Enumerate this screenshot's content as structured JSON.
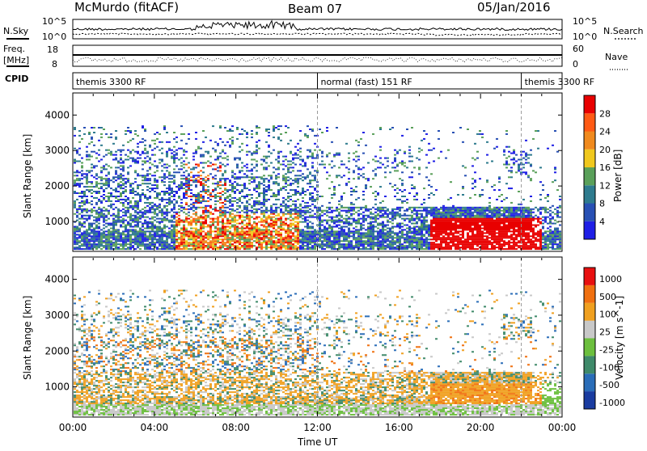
{
  "header": {
    "station": "McMurdo (fitACF)",
    "beam": "Beam 07",
    "date": "05/Jan/2016"
  },
  "left_labels": {
    "nsky": "N.Sky",
    "freq": "Freq.",
    "freq_unit": "[MHz]",
    "cpid": "CPID"
  },
  "right_labels": {
    "nsearch": "N.Search",
    "nave": "Nave"
  },
  "axes_small": {
    "noise_left_top": "10^5",
    "noise_left_bottom": "10^0",
    "noise_right_top": "10^5",
    "noise_right_bottom": "10^0",
    "freq_top": "18",
    "freq_bottom": "8",
    "nave_top": "60",
    "nave_bottom": "0"
  },
  "cpid_segments": [
    {
      "label": "themis 3300 RF",
      "start_hour": 0
    },
    {
      "label": "normal (fast) 151 RF",
      "start_hour": 12
    },
    {
      "label": "themis 3300 RF",
      "start_hour": 22
    }
  ],
  "chart_data": [
    {
      "type": "heatmap",
      "name": "power-panel",
      "ylabel": "Slant Range [km]",
      "xlabel": "",
      "y_ticks": [
        "1000",
        "2000",
        "3000",
        "4000"
      ],
      "y_tick_values": [
        1000,
        2000,
        3000,
        4000
      ],
      "ylim": [
        180,
        4600
      ],
      "x_ticks": [],
      "colorbar": {
        "label": "Power [dB]",
        "ticks": [
          "4",
          "8",
          "12",
          "16",
          "20",
          "24",
          "28"
        ],
        "levels": [
          {
            "color": "#1f1fe6",
            "from": 0,
            "to": 4
          },
          {
            "color": "#2850b4",
            "from": 4,
            "to": 8
          },
          {
            "color": "#2e7b8e",
            "from": 8,
            "to": 12
          },
          {
            "color": "#5aa05a",
            "from": 12,
            "to": 16
          },
          {
            "color": "#f0c81e",
            "from": 16,
            "to": 20
          },
          {
            "color": "#f08a1e",
            "from": 20,
            "to": 24
          },
          {
            "color": "#ff5a14",
            "from": 24,
            "to": 28
          },
          {
            "color": "#e80000",
            "from": 28,
            "to": 32
          }
        ]
      }
    },
    {
      "type": "heatmap",
      "name": "velocity-panel",
      "ylabel": "Slant Range [km]",
      "xlabel": "Time UT",
      "y_ticks": [
        "1000",
        "2000",
        "3000",
        "4000"
      ],
      "y_tick_values": [
        1000,
        2000,
        3000,
        4000
      ],
      "ylim": [
        180,
        4600
      ],
      "x_ticks": [
        "00:00",
        "04:00",
        "08:00",
        "12:00",
        "16:00",
        "20:00",
        "00:00"
      ],
      "x_tick_values": [
        0,
        4,
        8,
        12,
        16,
        20,
        24
      ],
      "xlim": [
        0,
        24
      ],
      "colorbar": {
        "label": "Velocity [m s^-1]",
        "ticks": [
          "1000",
          "500",
          "100",
          "25",
          "-25",
          "-100",
          "-500",
          "-1000"
        ],
        "levels": [
          {
            "color": "#1a3ca0",
            "label": ">1000"
          },
          {
            "color": "#2a6db8",
            "label": "500..1000"
          },
          {
            "color": "#3f8a6a",
            "label": "100..500"
          },
          {
            "color": "#6cbf3e",
            "label": "25..100"
          },
          {
            "color": "#c8c8c8",
            "label": "-25..25"
          },
          {
            "color": "#f0a020",
            "label": "-100..-25"
          },
          {
            "color": "#f07010",
            "label": "-500..-100"
          },
          {
            "color": "#e81010",
            "label": "<-1000"
          }
        ]
      }
    }
  ]
}
